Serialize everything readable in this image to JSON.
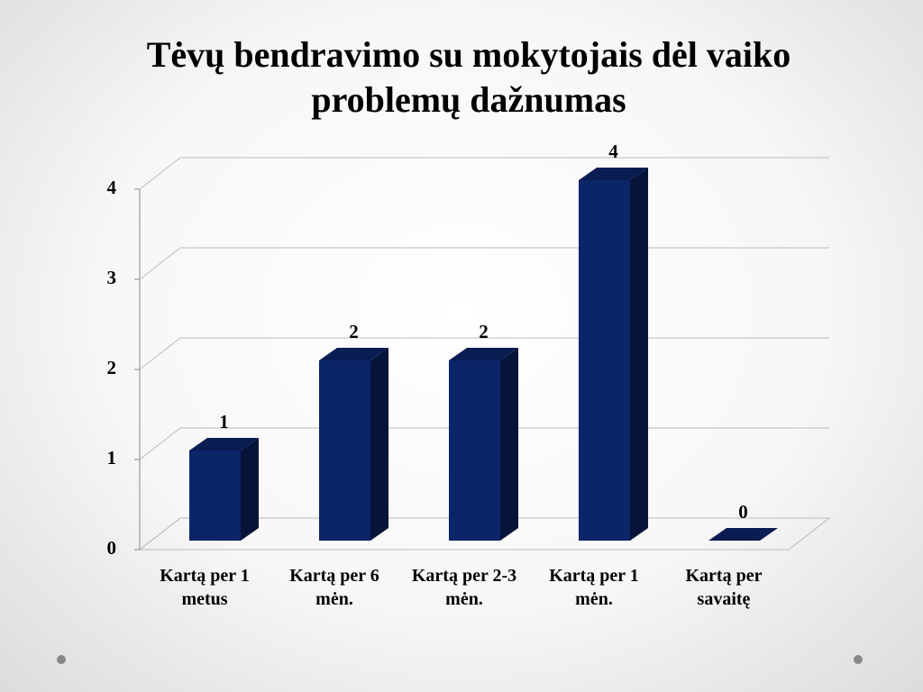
{
  "chart_data": {
    "type": "bar3d",
    "title": "Tėvų bendravimo su mokytojais dėl vaiko problemų dažnumas",
    "categories": [
      "Kartą per 1 metus",
      "Kartą per 6 mėn.",
      "Kartą per 2-3 mėn.",
      "Kartą per 1 mėn.",
      "Kartą per savaitę"
    ],
    "values": [
      1,
      2,
      2,
      4,
      0
    ],
    "color": "#0c2468",
    "ylim": [
      0,
      4
    ],
    "yticks": [
      0,
      1,
      2,
      3,
      4
    ],
    "grid": true
  }
}
